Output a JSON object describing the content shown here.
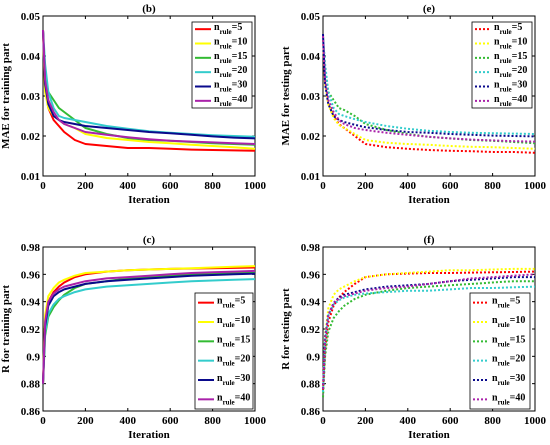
{
  "chart_data": [
    {
      "type": "line",
      "title": "(b)",
      "xlabel": "Iteration",
      "ylabel": "MAE for training part",
      "xlim": [
        0,
        1000
      ],
      "ylim": [
        0.01,
        0.05
      ],
      "xticks": [
        "0",
        "200",
        "400",
        "600",
        "800",
        "1000"
      ],
      "yticks": [
        "0.01",
        "0.02",
        "0.03",
        "0.04",
        "0.05"
      ],
      "line_style": "solid",
      "legend_position": "top-right",
      "grid": false,
      "x": [
        0,
        10,
        25,
        50,
        75,
        100,
        150,
        200,
        300,
        400,
        500,
        600,
        700,
        800,
        900,
        1000
      ],
      "series": [
        {
          "name": "n_rule=5",
          "color": "#ff0000",
          "values": [
            0.0465,
            0.032,
            0.027,
            0.024,
            0.0225,
            0.021,
            0.019,
            0.018,
            0.0175,
            0.017,
            0.017,
            0.0168,
            0.0166,
            0.0165,
            0.0164,
            0.0163
          ]
        },
        {
          "name": "n_rule=10",
          "color": "#ffff00",
          "values": [
            0.0465,
            0.031,
            0.027,
            0.025,
            0.024,
            0.023,
            0.022,
            0.0205,
            0.0195,
            0.019,
            0.0185,
            0.0182,
            0.0178,
            0.0175,
            0.0172,
            0.0168
          ]
        },
        {
          "name": "n_rule=15",
          "color": "#33bb33",
          "values": [
            0.0465,
            0.035,
            0.031,
            0.029,
            0.027,
            0.026,
            0.024,
            0.022,
            0.0205,
            0.0195,
            0.019,
            0.0188,
            0.0185,
            0.0182,
            0.018,
            0.0178
          ]
        },
        {
          "name": "n_rule=20",
          "color": "#33cccc",
          "values": [
            0.0465,
            0.038,
            0.031,
            0.027,
            0.025,
            0.0245,
            0.024,
            0.0235,
            0.0225,
            0.0218,
            0.0212,
            0.0208,
            0.0205,
            0.0202,
            0.02,
            0.0198
          ]
        },
        {
          "name": "n_rule=30",
          "color": "#0a0a8c",
          "values": [
            0.0465,
            0.033,
            0.028,
            0.025,
            0.024,
            0.0235,
            0.023,
            0.0225,
            0.022,
            0.0215,
            0.021,
            0.0207,
            0.0203,
            0.0199,
            0.0196,
            0.0194
          ]
        },
        {
          "name": "n_rule=40",
          "color": "#aa22aa",
          "values": [
            0.0465,
            0.034,
            0.029,
            0.026,
            0.024,
            0.023,
            0.022,
            0.021,
            0.0203,
            0.0197,
            0.0192,
            0.0188,
            0.0186,
            0.0184,
            0.0182,
            0.018
          ]
        }
      ]
    },
    {
      "type": "line",
      "title": "(e)",
      "xlabel": "Iteration",
      "ylabel": "MAE for testing part",
      "xlim": [
        0,
        1000
      ],
      "ylim": [
        0.01,
        0.05
      ],
      "xticks": [
        "0",
        "200",
        "400",
        "600",
        "800",
        "1000"
      ],
      "yticks": [
        "0.01",
        "0.02",
        "0.03",
        "0.04",
        "0.05"
      ],
      "line_style": "dotted",
      "legend_position": "top-right",
      "grid": false,
      "x": [
        0,
        10,
        25,
        50,
        75,
        100,
        150,
        200,
        300,
        400,
        500,
        600,
        700,
        800,
        900,
        1000
      ],
      "series": [
        {
          "name": "n_rule=5",
          "color": "#ff0000",
          "values": [
            0.044,
            0.034,
            0.028,
            0.025,
            0.023,
            0.022,
            0.02,
            0.018,
            0.0172,
            0.0168,
            0.0165,
            0.0163,
            0.0162,
            0.016,
            0.016,
            0.0158
          ]
        },
        {
          "name": "n_rule=10",
          "color": "#ffff00",
          "values": [
            0.045,
            0.033,
            0.028,
            0.0245,
            0.0228,
            0.022,
            0.0205,
            0.019,
            0.0183,
            0.018,
            0.0178,
            0.0175,
            0.0173,
            0.0172,
            0.017,
            0.0168
          ]
        },
        {
          "name": "n_rule=15",
          "color": "#33bb33",
          "values": [
            0.045,
            0.036,
            0.031,
            0.029,
            0.027,
            0.0265,
            0.025,
            0.023,
            0.0215,
            0.0205,
            0.0198,
            0.0194,
            0.019,
            0.0188,
            0.0185,
            0.0182
          ]
        },
        {
          "name": "n_rule=20",
          "color": "#33cccc",
          "values": [
            0.045,
            0.038,
            0.031,
            0.027,
            0.0255,
            0.025,
            0.0242,
            0.0235,
            0.0225,
            0.0218,
            0.0213,
            0.021,
            0.0208,
            0.0207,
            0.0206,
            0.0205
          ]
        },
        {
          "name": "n_rule=30",
          "color": "#0a0a8c",
          "values": [
            0.0455,
            0.033,
            0.028,
            0.025,
            0.024,
            0.0235,
            0.0228,
            0.0222,
            0.0215,
            0.021,
            0.0208,
            0.0205,
            0.0203,
            0.0201,
            0.02,
            0.0199
          ]
        },
        {
          "name": "n_rule=40",
          "color": "#aa22aa",
          "values": [
            0.045,
            0.034,
            0.029,
            0.026,
            0.024,
            0.023,
            0.022,
            0.0215,
            0.0208,
            0.0203,
            0.0198,
            0.0194,
            0.0191,
            0.0189,
            0.0187,
            0.0186
          ]
        }
      ]
    },
    {
      "type": "line",
      "title": "(c)",
      "xlabel": "Iteration",
      "ylabel": "R for training part",
      "xlim": [
        0,
        1000
      ],
      "ylim": [
        0.86,
        0.98
      ],
      "xticks": [
        "0",
        "200",
        "400",
        "600",
        "800",
        "1000"
      ],
      "yticks": [
        "0.86",
        "0.88",
        "0.9",
        "0.92",
        "0.94",
        "0.96",
        "0.98"
      ],
      "line_style": "solid",
      "legend_position": "bottom-right",
      "grid": false,
      "x": [
        0,
        10,
        25,
        50,
        75,
        100,
        150,
        200,
        300,
        400,
        500,
        600,
        700,
        800,
        900,
        1000
      ],
      "series": [
        {
          "name": "n_rule=5",
          "color": "#ff0000",
          "values": [
            0.88,
            0.925,
            0.94,
            0.947,
            0.951,
            0.954,
            0.958,
            0.96,
            0.962,
            0.963,
            0.9635,
            0.964,
            0.9643,
            0.9645,
            0.9647,
            0.965
          ]
        },
        {
          "name": "n_rule=10",
          "color": "#ffff00",
          "values": [
            0.88,
            0.93,
            0.944,
            0.95,
            0.954,
            0.956,
            0.959,
            0.961,
            0.962,
            0.963,
            0.9635,
            0.964,
            0.9645,
            0.965,
            0.9655,
            0.966
          ]
        },
        {
          "name": "n_rule=15",
          "color": "#33bb33",
          "values": [
            0.88,
            0.915,
            0.929,
            0.936,
            0.941,
            0.945,
            0.95,
            0.953,
            0.955,
            0.957,
            0.958,
            0.959,
            0.96,
            0.9605,
            0.961,
            0.961
          ]
        },
        {
          "name": "n_rule=20",
          "color": "#33cccc",
          "values": [
            0.88,
            0.917,
            0.931,
            0.938,
            0.942,
            0.944,
            0.947,
            0.949,
            0.951,
            0.952,
            0.953,
            0.954,
            0.955,
            0.9555,
            0.956,
            0.9565
          ]
        },
        {
          "name": "n_rule=30",
          "color": "#0a0a8c",
          "values": [
            0.88,
            0.922,
            0.937,
            0.944,
            0.947,
            0.949,
            0.951,
            0.953,
            0.955,
            0.956,
            0.957,
            0.958,
            0.959,
            0.9595,
            0.96,
            0.9605
          ]
        },
        {
          "name": "n_rule=40",
          "color": "#aa22aa",
          "values": [
            0.88,
            0.925,
            0.94,
            0.946,
            0.949,
            0.951,
            0.953,
            0.955,
            0.957,
            0.958,
            0.959,
            0.96,
            0.961,
            0.9615,
            0.962,
            0.9625
          ]
        }
      ]
    },
    {
      "type": "line",
      "title": "(f)",
      "xlabel": "Iteration",
      "ylabel": "R for testing part",
      "xlim": [
        0,
        1000
      ],
      "ylim": [
        0.86,
        0.98
      ],
      "xticks": [
        "0",
        "200",
        "400",
        "600",
        "800",
        "1000"
      ],
      "yticks": [
        "0.86",
        "0.88",
        "0.9",
        "0.92",
        "0.94",
        "0.96",
        "0.98"
      ],
      "line_style": "dotted",
      "legend_position": "bottom-right",
      "grid": false,
      "x": [
        0,
        10,
        25,
        50,
        75,
        100,
        150,
        200,
        300,
        400,
        500,
        600,
        700,
        800,
        900,
        1000
      ],
      "series": [
        {
          "name": "n_rule=5",
          "color": "#ff0000",
          "values": [
            0.875,
            0.905,
            0.925,
            0.937,
            0.943,
            0.947,
            0.953,
            0.958,
            0.96,
            0.9605,
            0.961,
            0.961,
            0.9613,
            0.9615,
            0.9617,
            0.962
          ]
        },
        {
          "name": "n_rule=10",
          "color": "#ffff00",
          "values": [
            0.876,
            0.915,
            0.935,
            0.945,
            0.949,
            0.951,
            0.955,
            0.958,
            0.96,
            0.961,
            0.962,
            0.963,
            0.963,
            0.9635,
            0.964,
            0.964
          ]
        },
        {
          "name": "n_rule=15",
          "color": "#33bb33",
          "values": [
            0.87,
            0.9,
            0.918,
            0.928,
            0.933,
            0.937,
            0.942,
            0.945,
            0.948,
            0.95,
            0.951,
            0.952,
            0.953,
            0.954,
            0.955,
            0.955
          ]
        },
        {
          "name": "n_rule=20",
          "color": "#33cccc",
          "values": [
            0.874,
            0.912,
            0.93,
            0.938,
            0.941,
            0.943,
            0.945,
            0.946,
            0.947,
            0.948,
            0.948,
            0.949,
            0.95,
            0.95,
            0.9505,
            0.951
          ]
        },
        {
          "name": "n_rule=30",
          "color": "#0a0a8c",
          "values": [
            0.876,
            0.914,
            0.93,
            0.939,
            0.943,
            0.945,
            0.947,
            0.949,
            0.951,
            0.952,
            0.953,
            0.955,
            0.956,
            0.957,
            0.958,
            0.958
          ]
        },
        {
          "name": "n_rule=40",
          "color": "#aa22aa",
          "values": [
            0.876,
            0.913,
            0.93,
            0.939,
            0.942,
            0.944,
            0.946,
            0.948,
            0.95,
            0.951,
            0.953,
            0.955,
            0.957,
            0.958,
            0.959,
            0.96
          ]
        }
      ]
    }
  ]
}
